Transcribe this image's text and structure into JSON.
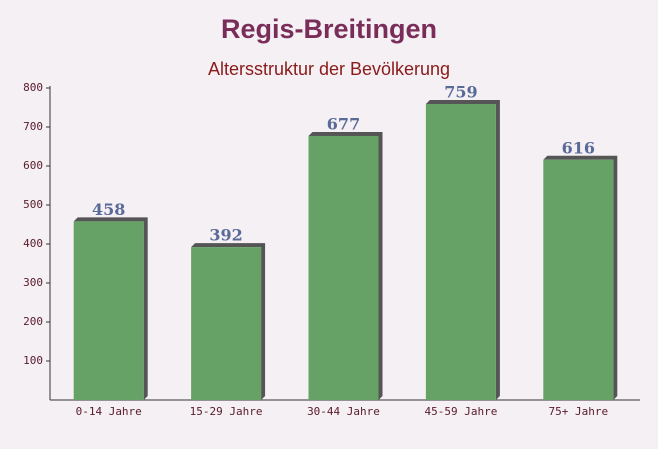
{
  "chart_data": {
    "type": "bar",
    "title": "Regis-Breitingen",
    "subtitle": "Altersstruktur der Bevölkerung",
    "categories": [
      "0-14 Jahre",
      "15-29 Jahre",
      "30-44 Jahre",
      "45-59 Jahre",
      "75+ Jahre"
    ],
    "values": [
      458,
      392,
      677,
      759,
      616
    ],
    "color": "#66a266",
    "ylim": [
      0,
      800
    ],
    "yticks": [
      100,
      200,
      300,
      400,
      500,
      600,
      700,
      800
    ],
    "grid": false
  }
}
